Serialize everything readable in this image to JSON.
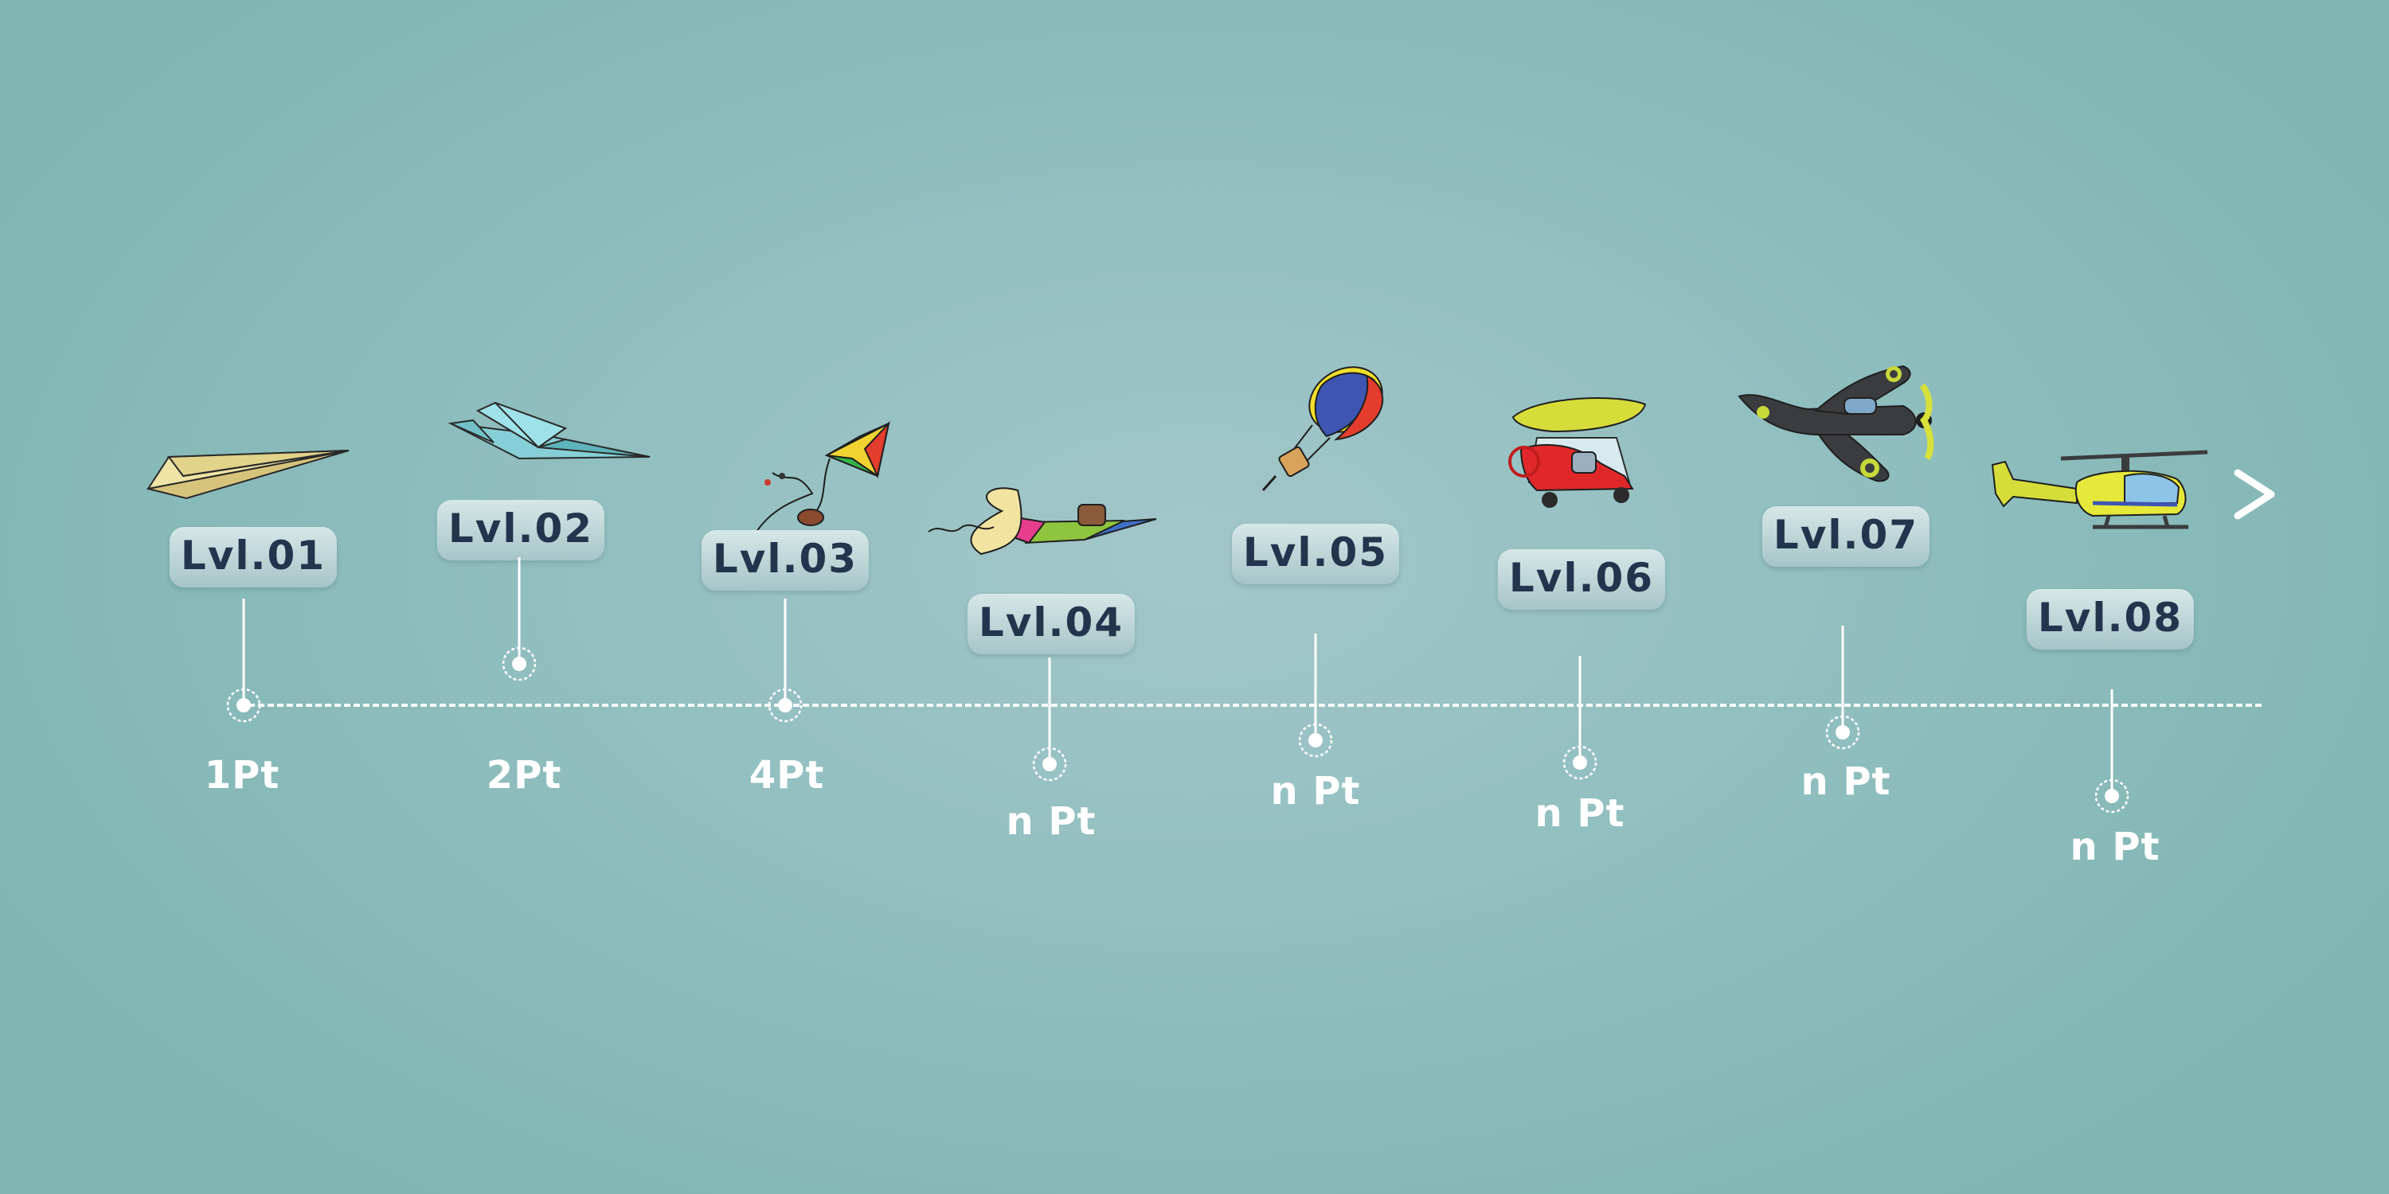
{
  "levels": [
    {
      "label": "Lvl.01",
      "points": "1Pt",
      "vehicle_icon": "paper-plane-icon"
    },
    {
      "label": "Lvl.02",
      "points": "2Pt",
      "vehicle_icon": "paper-jet-icon"
    },
    {
      "label": "Lvl.03",
      "points": "4Pt",
      "vehicle_icon": "kite-icon"
    },
    {
      "label": "Lvl.04",
      "points": "n Pt",
      "vehicle_icon": "rocket-glider-icon"
    },
    {
      "label": "Lvl.05",
      "points": "n Pt",
      "vehicle_icon": "hot-air-balloon-icon"
    },
    {
      "label": "Lvl.06",
      "points": "n Pt",
      "vehicle_icon": "ultralight-glider-icon"
    },
    {
      "label": "Lvl.07",
      "points": "n Pt",
      "vehicle_icon": "propeller-plane-icon"
    },
    {
      "label": "Lvl.08",
      "points": "n Pt",
      "vehicle_icon": "helicopter-icon"
    }
  ],
  "navigation": {
    "next_icon": "chevron-right-icon"
  },
  "colors": {
    "badge_text": "#23344d",
    "timeline": "#ffffff",
    "background": "#92bfc0"
  }
}
